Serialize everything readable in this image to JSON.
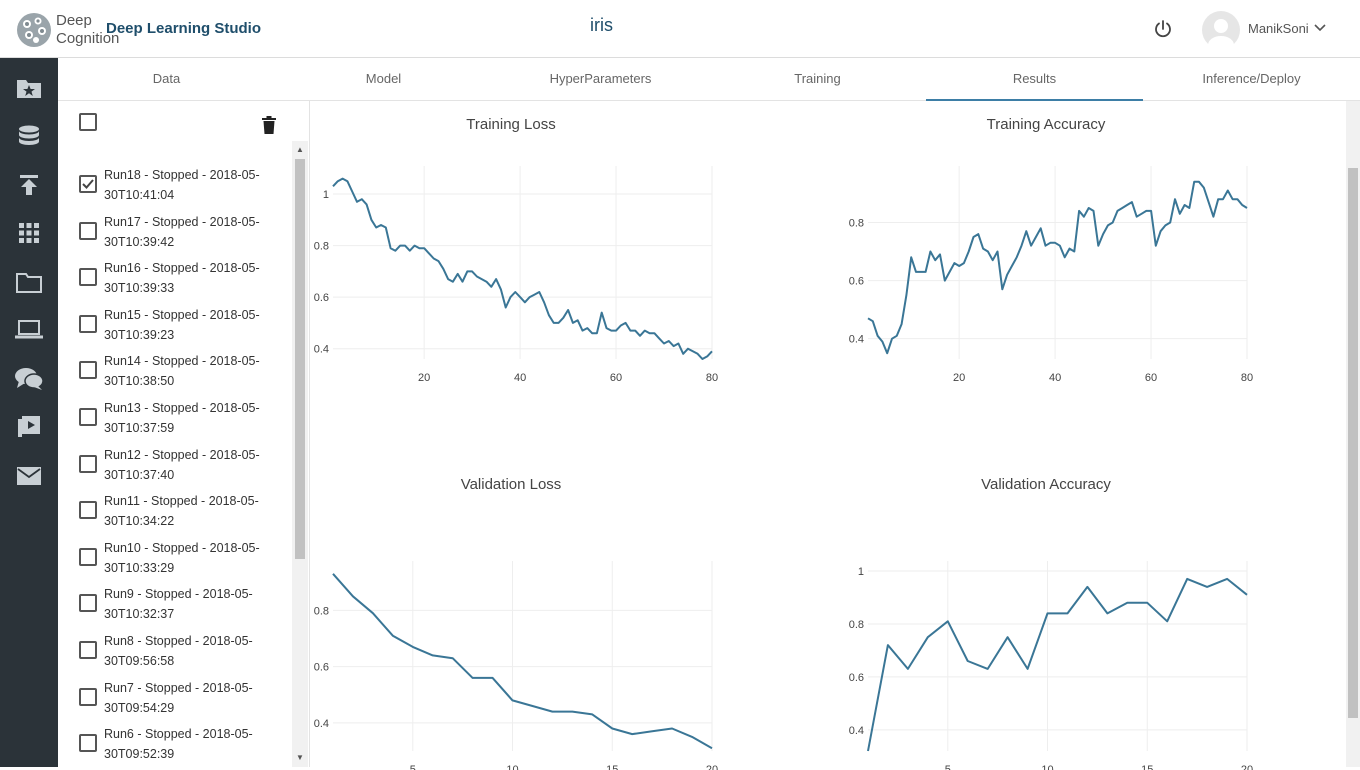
{
  "header": {
    "logo_line1": "Deep",
    "logo_line2": "Cognition",
    "app_title": "Deep Learning Studio",
    "project_title": "iris",
    "user_name": "ManikSoni"
  },
  "sidebar": {
    "icons": [
      "projects-star-folder-icon",
      "datasets-database-icon",
      "upload-icon",
      "apps-grid-icon",
      "folder-icon",
      "laptop-icon",
      "chat-icon",
      "video-icon",
      "mail-icon"
    ]
  },
  "tabs": [
    {
      "label": "Data",
      "active": false
    },
    {
      "label": "Model",
      "active": false
    },
    {
      "label": "HyperParameters",
      "active": false
    },
    {
      "label": "Training",
      "active": false
    },
    {
      "label": "Results",
      "active": true
    },
    {
      "label": "Inference/Deploy",
      "active": false
    }
  ],
  "runs": [
    {
      "line1": "Run18 - Stopped - 2018-05-",
      "line2": "30T10:41:04",
      "checked": true
    },
    {
      "line1": "Run17 - Stopped - 2018-05-",
      "line2": "30T10:39:42",
      "checked": false
    },
    {
      "line1": "Run16 - Stopped - 2018-05-",
      "line2": "30T10:39:33",
      "checked": false
    },
    {
      "line1": "Run15 - Stopped - 2018-05-",
      "line2": "30T10:39:23",
      "checked": false
    },
    {
      "line1": "Run14 - Stopped - 2018-05-",
      "line2": "30T10:38:50",
      "checked": false
    },
    {
      "line1": "Run13 - Stopped - 2018-05-",
      "line2": "30T10:37:59",
      "checked": false
    },
    {
      "line1": "Run12 - Stopped - 2018-05-",
      "line2": "30T10:37:40",
      "checked": false
    },
    {
      "line1": "Run11 - Stopped - 2018-05-",
      "line2": "30T10:34:22",
      "checked": false
    },
    {
      "line1": "Run10 - Stopped - 2018-05-",
      "line2": "30T10:33:29",
      "checked": false
    },
    {
      "line1": "Run9 - Stopped - 2018-05-",
      "line2": "30T10:32:37",
      "checked": false
    },
    {
      "line1": "Run8 - Stopped - 2018-05-",
      "line2": "30T09:56:58",
      "checked": false
    },
    {
      "line1": "Run7 - Stopped - 2018-05-",
      "line2": "30T09:54:29",
      "checked": false
    },
    {
      "line1": "Run6 - Stopped - 2018-05-",
      "line2": "30T09:52:39",
      "checked": false
    }
  ],
  "colors": {
    "line": "#3a7696",
    "accent": "#3d7ea6",
    "sidebar_bg": "#2b3339",
    "title_blue": "#1f4e6b"
  },
  "chart_data": [
    {
      "type": "line",
      "title": "Training Loss",
      "xlim": [
        1,
        80
      ],
      "ylim": [
        0.36,
        1.07
      ],
      "xticks": [
        20,
        40,
        60,
        80
      ],
      "yticks": [
        0.4,
        0.6,
        0.8,
        1
      ],
      "ytick_labels": [
        "0.4",
        "0.6",
        "0.8",
        "1"
      ],
      "x": [
        1,
        2,
        3,
        4,
        5,
        6,
        7,
        8,
        9,
        10,
        11,
        12,
        13,
        14,
        15,
        16,
        17,
        18,
        19,
        20,
        21,
        22,
        23,
        24,
        25,
        26,
        27,
        28,
        29,
        30,
        31,
        32,
        33,
        34,
        35,
        36,
        37,
        38,
        39,
        40,
        41,
        42,
        43,
        44,
        45,
        46,
        47,
        48,
        49,
        50,
        51,
        52,
        53,
        54,
        55,
        56,
        57,
        58,
        59,
        60,
        61,
        62,
        63,
        64,
        65,
        66,
        67,
        68,
        69,
        70,
        71,
        72,
        73,
        74,
        75,
        76,
        77,
        78,
        79,
        80
      ],
      "y": [
        1.03,
        1.05,
        1.06,
        1.05,
        1.01,
        0.97,
        0.98,
        0.96,
        0.9,
        0.87,
        0.88,
        0.87,
        0.79,
        0.78,
        0.8,
        0.8,
        0.78,
        0.8,
        0.79,
        0.79,
        0.77,
        0.75,
        0.74,
        0.71,
        0.67,
        0.66,
        0.69,
        0.66,
        0.7,
        0.7,
        0.68,
        0.67,
        0.66,
        0.64,
        0.67,
        0.63,
        0.56,
        0.6,
        0.62,
        0.6,
        0.58,
        0.6,
        0.61,
        0.62,
        0.58,
        0.53,
        0.5,
        0.5,
        0.52,
        0.55,
        0.5,
        0.51,
        0.47,
        0.48,
        0.46,
        0.46,
        0.54,
        0.48,
        0.47,
        0.47,
        0.49,
        0.5,
        0.47,
        0.47,
        0.45,
        0.47,
        0.46,
        0.46,
        0.44,
        0.42,
        0.43,
        0.41,
        0.42,
        0.38,
        0.4,
        0.39,
        0.38,
        0.36,
        0.37,
        0.39
      ]
    },
    {
      "type": "line",
      "title": "Training Accuracy",
      "xlim": [
        1,
        80
      ],
      "ylim": [
        0.33,
        0.96
      ],
      "xticks": [
        20,
        40,
        60,
        80
      ],
      "yticks": [
        0.4,
        0.6,
        0.8
      ],
      "ytick_labels": [
        "0.4",
        "0.6",
        "0.8"
      ],
      "x": [
        1,
        2,
        3,
        4,
        5,
        6,
        7,
        8,
        9,
        10,
        11,
        12,
        13,
        14,
        15,
        16,
        17,
        18,
        19,
        20,
        21,
        22,
        23,
        24,
        25,
        26,
        27,
        28,
        29,
        30,
        31,
        32,
        33,
        34,
        35,
        36,
        37,
        38,
        39,
        40,
        41,
        42,
        43,
        44,
        45,
        46,
        47,
        48,
        49,
        50,
        51,
        52,
        53,
        54,
        55,
        56,
        57,
        58,
        59,
        60,
        61,
        62,
        63,
        64,
        65,
        66,
        67,
        68,
        69,
        70,
        71,
        72,
        73,
        74,
        75,
        76,
        77,
        78,
        79,
        80
      ],
      "y": [
        0.47,
        0.46,
        0.41,
        0.39,
        0.35,
        0.4,
        0.41,
        0.45,
        0.55,
        0.68,
        0.63,
        0.63,
        0.63,
        0.7,
        0.67,
        0.69,
        0.6,
        0.63,
        0.66,
        0.65,
        0.66,
        0.7,
        0.75,
        0.76,
        0.71,
        0.7,
        0.67,
        0.7,
        0.57,
        0.62,
        0.65,
        0.68,
        0.72,
        0.77,
        0.72,
        0.75,
        0.78,
        0.72,
        0.73,
        0.73,
        0.72,
        0.68,
        0.71,
        0.7,
        0.84,
        0.82,
        0.85,
        0.84,
        0.72,
        0.76,
        0.79,
        0.8,
        0.84,
        0.85,
        0.86,
        0.87,
        0.82,
        0.83,
        0.84,
        0.84,
        0.72,
        0.77,
        0.79,
        0.8,
        0.88,
        0.83,
        0.86,
        0.85,
        0.94,
        0.94,
        0.92,
        0.87,
        0.82,
        0.88,
        0.88,
        0.91,
        0.88,
        0.88,
        0.86,
        0.85
      ]
    },
    {
      "type": "line",
      "title": "Validation Loss",
      "xlim": [
        1,
        20
      ],
      "ylim": [
        0.3,
        0.94
      ],
      "xticks": [
        5,
        10,
        15,
        20
      ],
      "yticks": [
        0.4,
        0.6,
        0.8
      ],
      "ytick_labels": [
        "0.4",
        "0.6",
        "0.8"
      ],
      "x": [
        1,
        2,
        3,
        4,
        5,
        6,
        7,
        8,
        9,
        10,
        11,
        12,
        13,
        14,
        15,
        16,
        17,
        18,
        19,
        20
      ],
      "y": [
        0.93,
        0.85,
        0.79,
        0.71,
        0.67,
        0.64,
        0.63,
        0.56,
        0.56,
        0.48,
        0.46,
        0.44,
        0.44,
        0.43,
        0.38,
        0.36,
        0.37,
        0.38,
        0.35,
        0.31
      ]
    },
    {
      "type": "line",
      "title": "Validation Accuracy",
      "xlim": [
        1,
        20
      ],
      "ylim": [
        0.32,
        1.0
      ],
      "xticks": [
        5,
        10,
        15,
        20
      ],
      "yticks": [
        0.4,
        0.6,
        0.8,
        1
      ],
      "ytick_labels": [
        "0.4",
        "0.6",
        "0.8",
        "1"
      ],
      "x": [
        1,
        2,
        3,
        4,
        5,
        6,
        7,
        8,
        9,
        10,
        11,
        12,
        13,
        14,
        15,
        16,
        17,
        18,
        19,
        20
      ],
      "y": [
        0.32,
        0.72,
        0.63,
        0.75,
        0.81,
        0.66,
        0.63,
        0.75,
        0.63,
        0.84,
        0.84,
        0.94,
        0.84,
        0.88,
        0.88,
        0.81,
        0.97,
        0.94,
        0.97,
        0.91
      ]
    }
  ]
}
